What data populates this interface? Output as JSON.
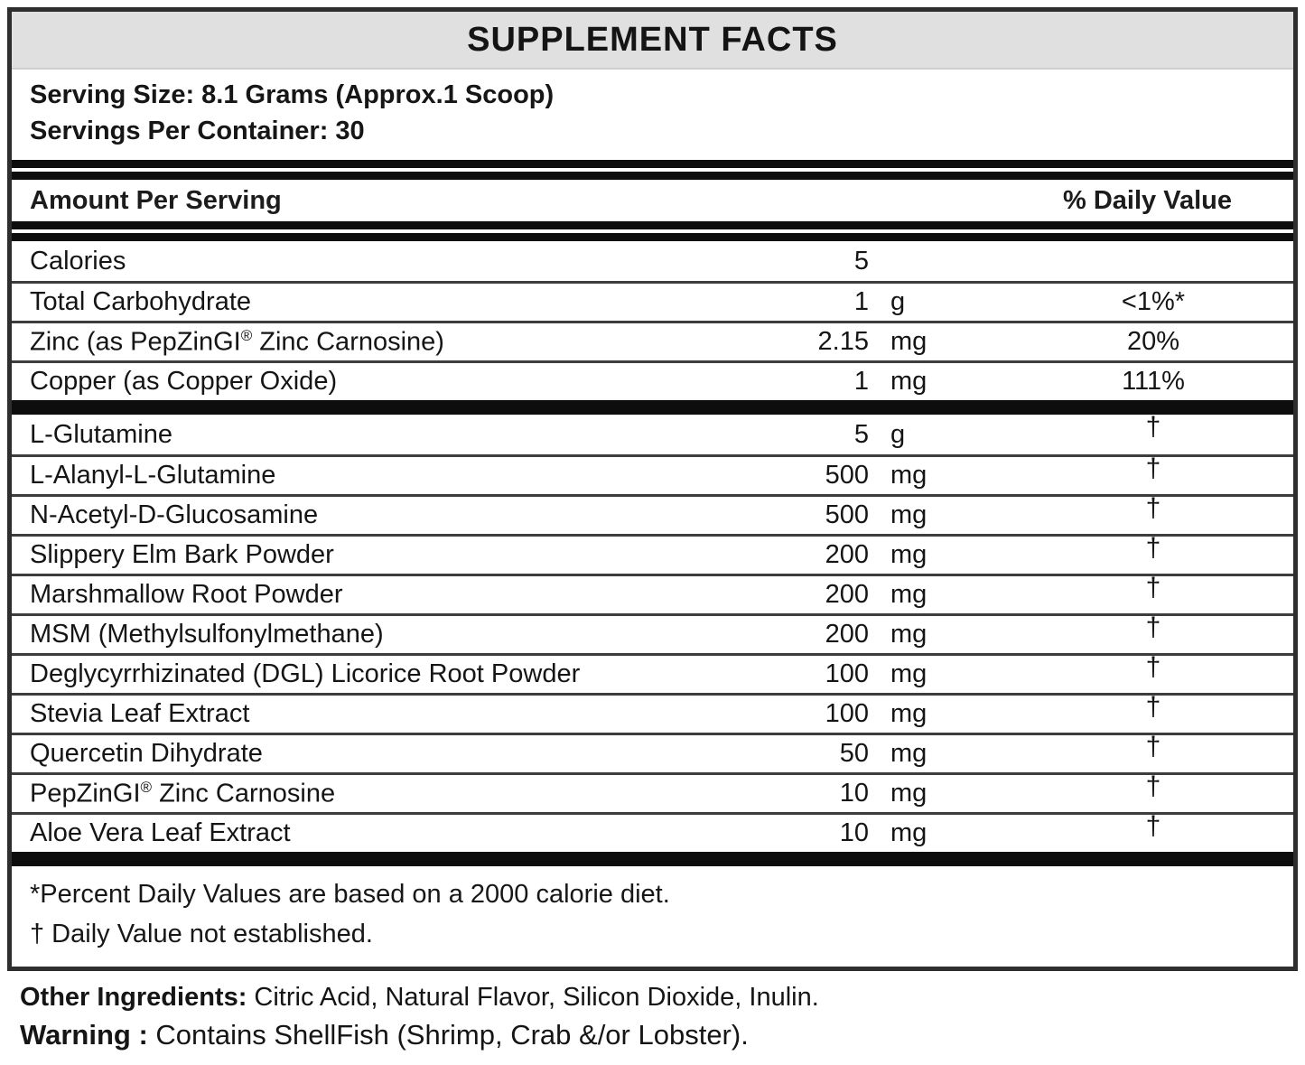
{
  "label": {
    "title": "SUPPLEMENT FACTS",
    "serving_size": "Serving Size: 8.1 Grams (Approx.1 Scoop)",
    "servings_per_container": "Servings Per Container: 30",
    "columns": {
      "amount_header": "Amount Per Serving",
      "daily_value_header": "% Daily Value"
    },
    "rows": [
      {
        "name": "Calories",
        "amount": "5",
        "unit": "",
        "dv": "",
        "thick_after": false
      },
      {
        "name": "Total Carbohydrate",
        "amount": "1",
        "unit": "g",
        "dv": "<1%*",
        "thick_after": false
      },
      {
        "name": "Zinc (as PepZinGI® Zinc Carnosine)",
        "amount": "2.15",
        "unit": "mg",
        "dv": "20%",
        "thick_after": false
      },
      {
        "name": "Copper (as Copper Oxide)",
        "amount": "1",
        "unit": "mg",
        "dv": "111%",
        "thick_after": true
      },
      {
        "name": "L-Glutamine",
        "amount": "5",
        "unit": "g",
        "dv": "†",
        "thick_after": false
      },
      {
        "name": "L-Alanyl-L-Glutamine",
        "amount": "500",
        "unit": "mg",
        "dv": "†",
        "thick_after": false
      },
      {
        "name": "N-Acetyl-D-Glucosamine",
        "amount": "500",
        "unit": "mg",
        "dv": "†",
        "thick_after": false
      },
      {
        "name": "Slippery Elm Bark Powder",
        "amount": "200",
        "unit": "mg",
        "dv": "†",
        "thick_after": false
      },
      {
        "name": "Marshmallow Root Powder",
        "amount": "200",
        "unit": "mg",
        "dv": "†",
        "thick_after": false
      },
      {
        "name": "MSM (Methylsulfonylmethane)",
        "amount": "200",
        "unit": "mg",
        "dv": "†",
        "thick_after": false
      },
      {
        "name": "Deglycyrrhizinated (DGL) Licorice Root Powder",
        "amount": "100",
        "unit": "mg",
        "dv": "†",
        "thick_after": false
      },
      {
        "name": "Stevia Leaf Extract",
        "amount": "100",
        "unit": "mg",
        "dv": "†",
        "thick_after": false
      },
      {
        "name": "Quercetin Dihydrate",
        "amount": "50",
        "unit": "mg",
        "dv": "†",
        "thick_after": false
      },
      {
        "name": "PepZinGI® Zinc Carnosine",
        "amount": "10",
        "unit": "mg",
        "dv": "†",
        "thick_after": false
      },
      {
        "name": "Aloe Vera Leaf Extract",
        "amount": "10",
        "unit": "mg",
        "dv": "†",
        "thick_after": true
      }
    ],
    "footnotes": [
      "*Percent Daily Values are based on a 2000 calorie diet.",
      "† Daily Value not established."
    ],
    "other_ingredients": {
      "label": "Other Ingredients:",
      "text": " Citric Acid, Natural Flavor, Silicon Dioxide, Inulin."
    },
    "warning": {
      "label": "Warning :",
      "text": " Contains ShellFish (Shrimp, Crab &/or Lobster)."
    },
    "colors": {
      "title_background": "#e0e0e0",
      "rule_black": "#0d0d0d",
      "text": "#1c1c1c"
    }
  }
}
